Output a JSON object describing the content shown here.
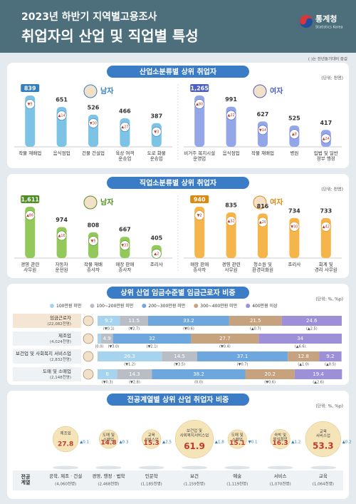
{
  "header": {
    "title": "2023년 하반기 지역별고용조사",
    "subtitle": "취업자의 산업 및 직업별 특성",
    "org": "통계청",
    "org_en": "Statistics Korea",
    "note": "( )는 전년동기대비 증감"
  },
  "chart_data": [
    {
      "type": "bar",
      "title": "산업소분류별 상위 취업자",
      "unit": "(단위: 천명)",
      "groups": [
        {
          "name": "남자",
          "color": "#7cc3e6",
          "accent": "#2f7fc1",
          "categories": [
            "작물 재배업",
            "음식점업",
            "건물 건설업",
            "육상 여객\n운송업",
            "도로 화물\n운송업"
          ],
          "values": [
            839,
            651,
            526,
            466,
            387
          ],
          "value_labels": [
            "839",
            "651",
            "526",
            "466",
            "387"
          ],
          "changes": [
            "▼5",
            "▲14",
            "▼30",
            "▲27",
            "▼3"
          ]
        },
        {
          "name": "여자",
          "color": "#93a6e8",
          "accent": "#4a5fc4",
          "categories": [
            "비거주 복지시설\n운영업",
            "음식점업",
            "작물 재배업",
            "병원",
            "입법 및 일반\n정부 행정"
          ],
          "values": [
            1265,
            991,
            627,
            525,
            417
          ],
          "value_labels": [
            "1,265",
            "991",
            "627",
            "525",
            "417"
          ],
          "changes": [
            "▲80",
            "▲22",
            "▼14",
            "▲8",
            "▲24"
          ]
        }
      ]
    },
    {
      "type": "bar",
      "title": "직업소분류별 상위 취업자",
      "unit": "(단위: 천명)",
      "groups": [
        {
          "name": "남자",
          "color": "#93c95a",
          "accent": "#4f8f22",
          "categories": [
            "경영 관련\n사무원",
            "자동차\n운전원",
            "작물 재배\n종사자",
            "매장 판매\n종사자",
            "조리사"
          ],
          "values": [
            1611,
            974,
            808,
            667,
            405
          ],
          "value_labels": [
            "1,611",
            "974",
            "808",
            "667",
            "405"
          ],
          "changes": [
            "▲86",
            "▲16",
            "▼5",
            "▼33",
            "▲2"
          ]
        },
        {
          "name": "여자",
          "color": "#f5b54a",
          "accent": "#d98a12",
          "categories": [
            "매장 판매\n종사자",
            "경영 관련\n사무원",
            "청소원 및\n환경미화원",
            "조리사",
            "회계 및\n경리 사무원"
          ],
          "values": [
            940,
            835,
            816,
            734,
            733
          ],
          "value_labels": [
            "940",
            "835",
            "816",
            "734",
            "733"
          ],
          "changes": [
            "▼2",
            "▲32",
            "▲20",
            "▼30",
            "▲42"
          ]
        }
      ]
    },
    {
      "type": "stacked_bar",
      "title": "상위 산업 임금수준별 임금근로자 비중",
      "unit": "(단위: %, %p)",
      "categories": [
        "임금근로자",
        "제조업",
        "보건업 및 사회복지 서비스업",
        "도매 및 소매업"
      ],
      "sublabels": [
        "(22,082천명)",
        "(4,024천명)",
        "(2,832천명)",
        "(2,148천명)"
      ],
      "series": [
        {
          "name": "100만원 미만",
          "color": "#a6d3ee",
          "values": [
            9.2,
            1.4,
            26.3,
            8.0
          ],
          "changes": [
            "(▼0.1)",
            "(0.0)",
            "(▼1.2)",
            "(▼0.3)"
          ]
        },
        {
          "name": "100~200만원 미만",
          "color": "#b9bec6",
          "values": [
            11.5,
            4.9,
            14.5,
            14.3
          ],
          "changes": [
            "(▼2.7)",
            "(▼3.0)",
            "(▼3.5)",
            "(▼2.8)"
          ]
        },
        {
          "name": "200~300만원 미만",
          "color": "#6ea7de",
          "values": [
            33.2,
            32.0,
            37.1,
            38.2
          ],
          "changes": [
            "(▼0.6)",
            "(▼2.1)",
            "(▼0.7)",
            "(0.0)"
          ]
        },
        {
          "name": "300~400만원 미만",
          "color": "#c7a27f",
          "values": [
            21.5,
            27.7,
            12.8,
            20.2
          ],
          "changes": [
            "(▲0.7)",
            "(▼0.4)",
            "(▲1.0)",
            "(▼0.6)"
          ]
        },
        {
          "name": "400만원 이상",
          "color": "#9d8fd8",
          "values": [
            24.6,
            34.0,
            9.2,
            19.4
          ],
          "changes": [
            "(▲2.5)",
            "(▲6.6)",
            "(▲0.5)",
            "(▲2.6)"
          ]
        }
      ]
    },
    {
      "type": "bubble",
      "title": "전공계열별 상위 산업 취업자 비중",
      "unit": "(단위: %, %p)",
      "row_label": "전공\n계열",
      "color": "#f4e4b8",
      "categories": [
        "공학, 제조 · 건설",
        "경영, 행정 · 법학",
        "인문학",
        "보건",
        "예술",
        "서비스",
        "교육"
      ],
      "sublabels": [
        "(4,060천명)",
        "(2,468천명)",
        "(1,185천명)",
        "(1,159천명)",
        "(1,119천명)",
        "(1,070천명)",
        "(1,064천명)"
      ],
      "industries": [
        "제조업",
        "도매 및\n소매업",
        "교육\n서비스업",
        "보건업 및\n사회복지서비스업",
        "도매 및\n소매업",
        "숙박 및\n음식점업",
        "교육\n서비스업"
      ],
      "values": [
        27.8,
        14.8,
        15.3,
        61.9,
        15.1,
        16.3,
        53.3
      ],
      "changes": [
        "▲0.1",
        "▲0.3",
        "▲2.5",
        "▲1.8",
        "▼0.1",
        "▲1.2",
        "▲0.2"
      ]
    }
  ]
}
